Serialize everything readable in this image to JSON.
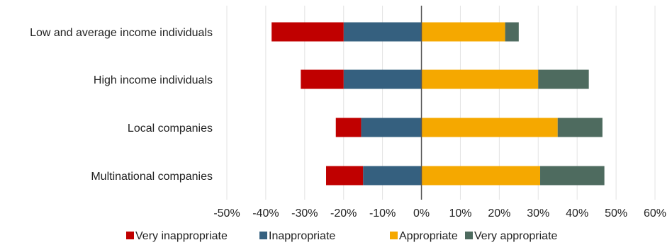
{
  "chart_data": {
    "type": "bar",
    "orientation": "horizontal",
    "stacked": "diverging",
    "title": "",
    "xlabel": "",
    "ylabel": "",
    "xlim": [
      -50,
      60
    ],
    "x_ticks": [
      -50,
      -40,
      -30,
      -20,
      -10,
      0,
      10,
      20,
      30,
      40,
      50,
      60
    ],
    "x_tick_labels": [
      "-50%",
      "-40%",
      "-30%",
      "-20%",
      "-10%",
      "0%",
      "10%",
      "20%",
      "30%",
      "40%",
      "50%",
      "60%"
    ],
    "grid": true,
    "legend_position": "bottom",
    "categories": [
      "Low and average income individuals",
      "High income individuals",
      "Local companies",
      "Multinational companies"
    ],
    "series": [
      {
        "name": "Very inappropriate",
        "color": "#c00000",
        "values": [
          -18.5,
          -11,
          -6.5,
          -9.5
        ]
      },
      {
        "name": "Inappropriate",
        "color": "#35607f",
        "values": [
          -20,
          -20,
          -15.5,
          -15
        ]
      },
      {
        "name": "Appropriate",
        "color": "#f5a800",
        "values": [
          21.5,
          30,
          35,
          30.5
        ]
      },
      {
        "name": "Very appropriate",
        "color": "#4e6b5f",
        "values": [
          3.5,
          13,
          11.5,
          16.5
        ]
      }
    ]
  }
}
